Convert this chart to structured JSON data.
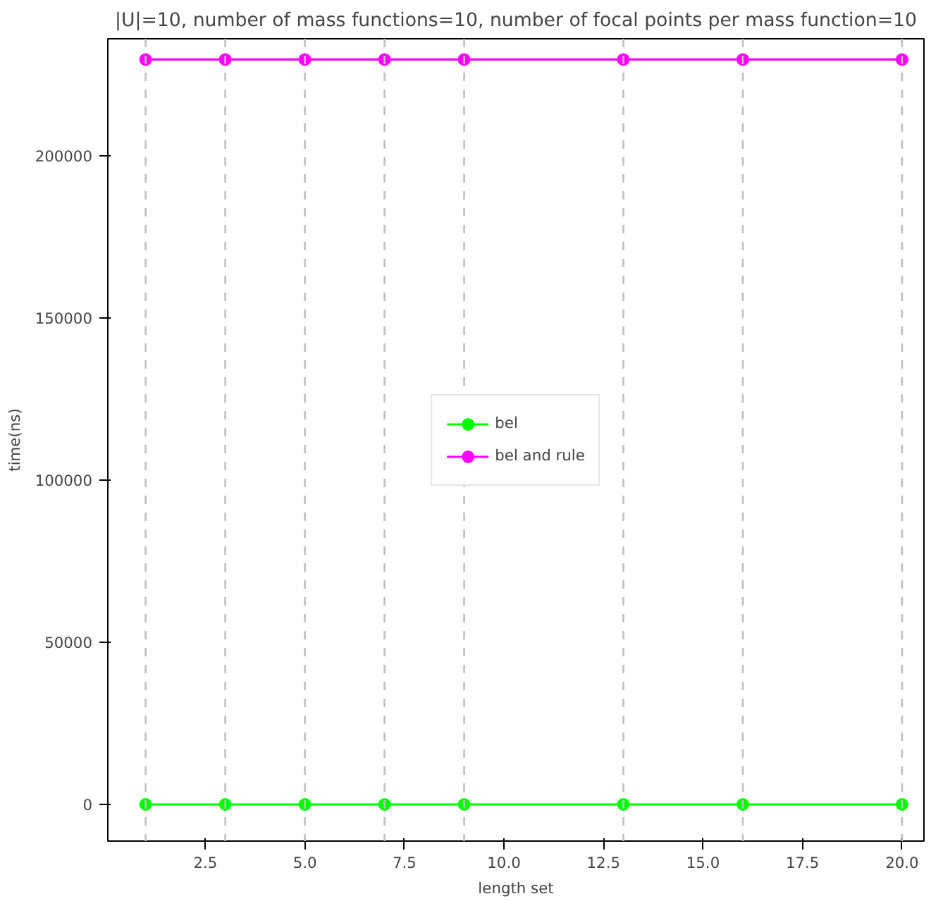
{
  "chart_data": {
    "type": "line",
    "title": "|U|=10, number of mass functions=10, number of focal points per mass function=10",
    "xlabel": "length set",
    "ylabel": "time(ns)",
    "x": [
      1,
      3,
      5,
      7,
      9,
      13,
      16,
      20
    ],
    "series": [
      {
        "name": "bel",
        "color": "#00ff00",
        "values": [
          0,
          0,
          0,
          0,
          0,
          0,
          0,
          0
        ]
      },
      {
        "name": "bel and rule",
        "color": "#ff00ff",
        "values": [
          229600,
          229600,
          229600,
          229600,
          229600,
          229600,
          229600,
          229600
        ]
      }
    ],
    "xlim": [
      0.05,
      20.55
    ],
    "ylim": [
      -11300,
      236000
    ],
    "xticks": [
      2.5,
      {
        "value": 5,
        "label": "5.0"
      },
      7.5,
      {
        "value": 10,
        "label": "10.0"
      },
      12.5,
      {
        "value": 15,
        "label": "15.0"
      },
      17.5,
      {
        "value": 20,
        "label": "20.0"
      }
    ],
    "yticks": [
      0,
      50000,
      100000,
      150000,
      200000
    ],
    "ref_lines": [
      {
        "axis": "x",
        "value": 1,
        "color": "#bfbfbf",
        "line_style": "dashed"
      },
      {
        "axis": "x",
        "value": 3,
        "color": "#bfbfbf",
        "line_style": "dashed"
      },
      {
        "axis": "x",
        "value": 5,
        "color": "#bfbfbf",
        "line_style": "dashed"
      },
      {
        "axis": "x",
        "value": 7,
        "color": "#bfbfbf",
        "line_style": "dashed"
      },
      {
        "axis": "x",
        "value": 9,
        "color": "#bfbfbf",
        "line_style": "dashed"
      },
      {
        "axis": "x",
        "value": 13,
        "color": "#bfbfbf",
        "line_style": "dashed"
      },
      {
        "axis": "x",
        "value": 16,
        "color": "#bfbfbf",
        "line_style": "dashed"
      },
      {
        "axis": "x",
        "value": 20,
        "color": "#bfbfbf",
        "line_style": "dashed"
      }
    ],
    "marker": "circle",
    "line_style": "solid",
    "grid": false,
    "legend": "center"
  }
}
